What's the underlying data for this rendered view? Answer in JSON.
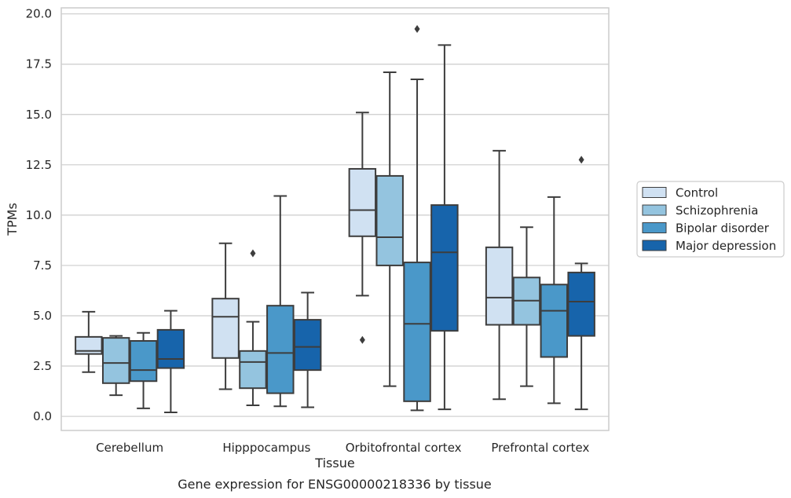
{
  "caption": "Gene expression for ENSG00000218336 by tissue",
  "chart_data": {
    "type": "box",
    "xlabel": "Tissue",
    "ylabel": "TPMs",
    "ylim": [
      -0.7,
      20.3
    ],
    "yticks": [
      "0.0",
      "2.5",
      "5.0",
      "7.5",
      "10.0",
      "12.5",
      "15.0",
      "17.5",
      "20.0"
    ],
    "categories": [
      "Cerebellum",
      "Hipppocampus",
      "Orbitofrontal cortex",
      "Prefrontal cortex"
    ],
    "grid": "horizontal",
    "legend_position": "right",
    "colors": [
      "#d0e1f2",
      "#94c4df",
      "#4a98c9",
      "#1764ab"
    ],
    "edge_color": "#3d3d3d",
    "series": [
      {
        "name": "Control",
        "boxes": [
          {
            "whislo": 2.2,
            "q1": 3.1,
            "med": 3.25,
            "q3": 3.95,
            "whishi": 5.2,
            "fliers": []
          },
          {
            "whislo": 1.35,
            "q1": 2.9,
            "med": 4.95,
            "q3": 5.85,
            "whishi": 8.6,
            "fliers": []
          },
          {
            "whislo": 6.0,
            "q1": 8.95,
            "med": 10.25,
            "q3": 12.3,
            "whishi": 15.1,
            "fliers": [
              3.8
            ]
          },
          {
            "whislo": 0.85,
            "q1": 4.55,
            "med": 5.9,
            "q3": 8.4,
            "whishi": 13.2,
            "fliers": []
          }
        ]
      },
      {
        "name": "Schizophrenia",
        "boxes": [
          {
            "whislo": 1.05,
            "q1": 1.65,
            "med": 2.65,
            "q3": 3.9,
            "whishi": 4.0,
            "fliers": []
          },
          {
            "whislo": 0.55,
            "q1": 1.4,
            "med": 2.7,
            "q3": 3.25,
            "whishi": 4.7,
            "fliers": [
              8.1
            ]
          },
          {
            "whislo": 1.5,
            "q1": 7.5,
            "med": 8.9,
            "q3": 11.95,
            "whishi": 17.1,
            "fliers": []
          },
          {
            "whislo": 1.5,
            "q1": 4.55,
            "med": 5.75,
            "q3": 6.9,
            "whishi": 9.4,
            "fliers": []
          }
        ]
      },
      {
        "name": "Bipolar disorder",
        "boxes": [
          {
            "whislo": 0.4,
            "q1": 1.75,
            "med": 2.3,
            "q3": 3.75,
            "whishi": 4.15,
            "fliers": []
          },
          {
            "whislo": 0.5,
            "q1": 1.15,
            "med": 3.15,
            "q3": 5.5,
            "whishi": 10.95,
            "fliers": []
          },
          {
            "whislo": 0.3,
            "q1": 0.75,
            "med": 4.6,
            "q3": 7.65,
            "whishi": 16.75,
            "fliers": [
              19.25
            ]
          },
          {
            "whislo": 0.65,
            "q1": 2.95,
            "med": 5.25,
            "q3": 6.55,
            "whishi": 10.9,
            "fliers": []
          }
        ]
      },
      {
        "name": "Major depression",
        "boxes": [
          {
            "whislo": 0.2,
            "q1": 2.4,
            "med": 2.85,
            "q3": 4.3,
            "whishi": 5.25,
            "fliers": []
          },
          {
            "whislo": 0.45,
            "q1": 2.3,
            "med": 3.45,
            "q3": 4.8,
            "whishi": 6.15,
            "fliers": []
          },
          {
            "whislo": 0.35,
            "q1": 4.25,
            "med": 8.15,
            "q3": 10.5,
            "whishi": 18.45,
            "fliers": []
          },
          {
            "whislo": 0.35,
            "q1": 4.0,
            "med": 5.7,
            "q3": 7.15,
            "whishi": 7.6,
            "fliers": [
              12.75
            ]
          }
        ]
      }
    ]
  }
}
